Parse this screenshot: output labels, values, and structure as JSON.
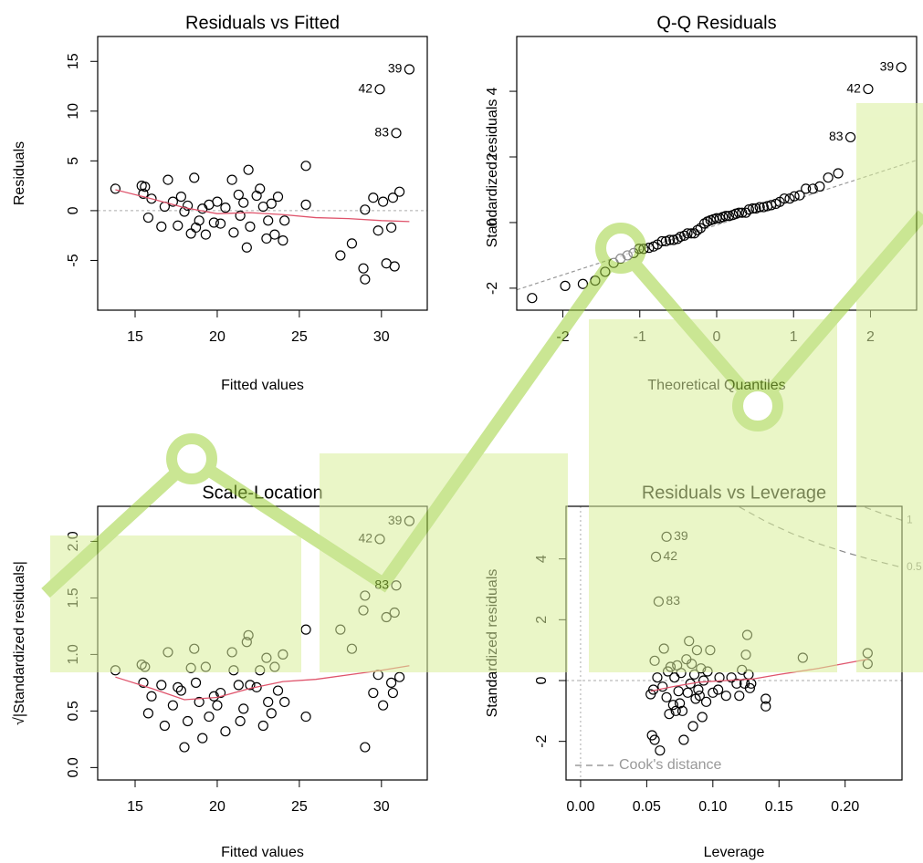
{
  "chart_data": [
    {
      "type": "scatter",
      "title": "Residuals vs Fitted",
      "x_label": "Fitted values",
      "y_label": "Residuals",
      "xlim": [
        12.72,
        32.79
      ],
      "ylim": [
        -10.0,
        17.5
      ],
      "xticks": [
        15,
        20,
        25,
        30
      ],
      "yticks": [
        -5,
        0,
        5,
        10,
        15
      ],
      "point_color": "#000000",
      "hline": 0,
      "x": [
        13.8,
        15.4,
        15.5,
        15.6,
        15.8,
        16.0,
        16.6,
        16.8,
        17.0,
        17.3,
        17.6,
        17.8,
        18.0,
        18.2,
        18.4,
        18.6,
        18.7,
        18.9,
        19.1,
        19.3,
        19.5,
        19.8,
        20.0,
        20.2,
        20.5,
        20.9,
        21.0,
        21.3,
        21.4,
        21.6,
        21.8,
        21.9,
        22.0,
        22.4,
        22.6,
        22.8,
        23.0,
        23.1,
        23.3,
        23.5,
        23.7,
        24.0,
        24.1,
        25.4,
        25.4,
        27.5,
        28.2,
        28.9,
        29.0,
        29.0,
        29.5,
        29.8,
        29.9,
        30.1,
        30.3,
        30.6,
        30.7,
        30.9,
        30.8,
        31.1,
        31.7
      ],
      "y": [
        2.2,
        2.5,
        1.7,
        2.4,
        -0.7,
        1.2,
        -1.6,
        0.4,
        3.1,
        0.9,
        -1.5,
        1.4,
        -0.1,
        0.5,
        -2.3,
        3.3,
        -1.7,
        -1.0,
        0.2,
        -2.4,
        0.6,
        -1.2,
        0.9,
        -1.3,
        0.3,
        3.1,
        -2.2,
        1.6,
        -0.5,
        0.8,
        -3.7,
        4.1,
        -1.6,
        1.5,
        2.2,
        0.4,
        -2.8,
        -1.0,
        0.7,
        -2.4,
        1.4,
        -3.0,
        -1.0,
        4.5,
        0.6,
        -4.5,
        -3.3,
        -5.8,
        -6.9,
        0.1,
        1.3,
        -2.0,
        12.2,
        0.9,
        -5.3,
        -1.7,
        1.3,
        7.8,
        -5.6,
        1.9,
        14.2
      ],
      "smooth": {
        "color": "#df536b",
        "x": [
          13.8,
          16,
          18,
          20,
          22,
          24,
          26,
          28,
          30,
          31.7
        ],
        "y": [
          2.1,
          1.2,
          0.3,
          -0.3,
          -0.2,
          -0.4,
          -0.7,
          -0.8,
          -1.0,
          -1.1
        ]
      },
      "annotations": [
        {
          "text": "39",
          "x": 31.7,
          "y": 14.2
        },
        {
          "text": "42",
          "x": 29.9,
          "y": 12.2
        },
        {
          "text": "83",
          "x": 30.9,
          "y": 7.8
        }
      ]
    },
    {
      "type": "scatter",
      "title": "Q-Q Residuals",
      "x_label": "Theoretical Quantiles",
      "y_label": "Standardized residuals",
      "xlim": [
        -2.6,
        2.6
      ],
      "ylim": [
        -2.67,
        5.67
      ],
      "xticks": [
        -2,
        -1,
        0,
        1,
        2
      ],
      "yticks": [
        -2,
        0,
        2,
        4
      ],
      "point_color": "#000000",
      "x": [
        -2.4,
        -1.97,
        -1.74,
        -1.58,
        -1.45,
        -1.34,
        -1.25,
        -1.16,
        -1.08,
        -1.01,
        -0.95,
        -0.88,
        -0.82,
        -0.77,
        -0.71,
        -0.66,
        -0.61,
        -0.56,
        -0.51,
        -0.47,
        -0.42,
        -0.38,
        -0.33,
        -0.29,
        -0.25,
        -0.21,
        -0.16,
        -0.12,
        -0.08,
        -0.04,
        0,
        0.04,
        0.08,
        0.12,
        0.16,
        0.21,
        0.25,
        0.29,
        0.33,
        0.38,
        0.42,
        0.47,
        0.51,
        0.56,
        0.61,
        0.66,
        0.71,
        0.77,
        0.82,
        0.88,
        0.95,
        1.01,
        1.08,
        1.16,
        1.25,
        1.34,
        1.45,
        1.58,
        1.74,
        1.97,
        2.4
      ],
      "y": [
        -2.3,
        -1.93,
        -1.87,
        -1.77,
        -1.5,
        -1.23,
        -1.1,
        -1.0,
        -0.93,
        -0.8,
        -0.8,
        -0.77,
        -0.73,
        -0.67,
        -0.57,
        -0.57,
        -0.53,
        -0.53,
        -0.5,
        -0.43,
        -0.4,
        -0.33,
        -0.33,
        -0.33,
        -0.23,
        -0.17,
        -0.03,
        0.03,
        0.07,
        0.1,
        0.13,
        0.13,
        0.17,
        0.2,
        0.2,
        0.23,
        0.27,
        0.3,
        0.3,
        0.3,
        0.4,
        0.43,
        0.43,
        0.47,
        0.47,
        0.5,
        0.53,
        0.57,
        0.63,
        0.73,
        0.73,
        0.8,
        0.83,
        1.03,
        1.03,
        1.1,
        1.37,
        1.5,
        2.6,
        4.07,
        4.73
      ],
      "refline": {
        "color": "#999999",
        "x": [
          -2.6,
          2.6
        ],
        "y": [
          -2.05,
          1.9
        ]
      },
      "annotations": [
        {
          "text": "39",
          "x": 2.4,
          "y": 4.73
        },
        {
          "text": "42",
          "x": 1.97,
          "y": 4.07
        },
        {
          "text": "83",
          "x": 1.74,
          "y": 2.6
        }
      ]
    },
    {
      "type": "scatter",
      "title": "Scale-Location",
      "x_label": "Fitted values",
      "y_label": "√|Standardized residuals|",
      "xlim": [
        12.72,
        32.79
      ],
      "ylim": [
        -0.11,
        2.31
      ],
      "xticks": [
        15,
        20,
        25,
        30
      ],
      "yticks": [
        {
          "value": 0,
          "label": "0.0"
        },
        0.5,
        {
          "value": 1,
          "label": "1.0"
        },
        1.5,
        {
          "value": 2,
          "label": "2.0"
        }
      ],
      "point_color": "#000000",
      "x": [
        13.8,
        15.4,
        15.5,
        15.6,
        15.8,
        16.0,
        16.6,
        16.8,
        17.0,
        17.3,
        17.6,
        17.8,
        18.0,
        18.2,
        18.4,
        18.6,
        18.7,
        18.9,
        19.1,
        19.3,
        19.5,
        19.8,
        20.0,
        20.2,
        20.5,
        20.9,
        21.0,
        21.3,
        21.4,
        21.6,
        21.8,
        21.9,
        22.0,
        22.4,
        22.6,
        22.8,
        23.0,
        23.1,
        23.3,
        23.5,
        23.7,
        24.0,
        24.1,
        25.4,
        25.4,
        27.5,
        28.2,
        28.9,
        29.0,
        29.0,
        29.5,
        29.8,
        29.9,
        30.1,
        30.3,
        30.6,
        30.7,
        30.9,
        30.8,
        31.1,
        31.7
      ],
      "y": [
        0.86,
        0.91,
        0.75,
        0.89,
        0.48,
        0.63,
        0.73,
        0.37,
        1.02,
        0.55,
        0.71,
        0.68,
        0.18,
        0.41,
        0.88,
        1.05,
        0.75,
        0.58,
        0.26,
        0.89,
        0.45,
        0.63,
        0.55,
        0.66,
        0.32,
        1.02,
        0.86,
        0.73,
        0.41,
        0.52,
        1.11,
        1.17,
        0.73,
        0.71,
        0.86,
        0.37,
        0.97,
        0.58,
        0.48,
        0.89,
        0.68,
        1.0,
        0.58,
        1.22,
        0.45,
        1.22,
        1.05,
        1.39,
        1.52,
        0.18,
        0.66,
        0.82,
        2.02,
        0.55,
        1.33,
        0.75,
        0.66,
        1.61,
        1.37,
        0.8,
        2.18
      ],
      "smooth": {
        "color": "#df536b",
        "x": [
          13.8,
          16,
          18,
          20,
          22,
          24,
          26,
          28,
          30,
          31.7
        ],
        "y": [
          0.8,
          0.7,
          0.6,
          0.62,
          0.7,
          0.76,
          0.78,
          0.82,
          0.86,
          0.9
        ]
      },
      "annotations": [
        {
          "text": "39",
          "x": 31.7,
          "y": 2.18
        },
        {
          "text": "42",
          "x": 29.9,
          "y": 2.02
        },
        {
          "text": "83",
          "x": 30.9,
          "y": 1.61
        }
      ]
    },
    {
      "type": "scatter",
      "title": "Residuals vs Leverage",
      "x_label": "Leverage",
      "y_label": "Standardized residuals",
      "xlim": [
        -0.011,
        0.243
      ],
      "ylim": [
        -3.27,
        5.73
      ],
      "xticks": [
        {
          "value": 0,
          "label": "0.00"
        },
        {
          "value": 0.05,
          "label": "0.05"
        },
        {
          "value": 0.1,
          "label": "0.10"
        },
        {
          "value": 0.15,
          "label": "0.15"
        },
        {
          "value": 0.2,
          "label": "0.20"
        }
      ],
      "yticks": [
        -2,
        0,
        2,
        4
      ],
      "point_color": "#000000",
      "hline": 0,
      "vline": 0,
      "x": [
        0.053,
        0.055,
        0.056,
        0.054,
        0.056,
        0.06,
        0.058,
        0.062,
        0.063,
        0.065,
        0.066,
        0.067,
        0.068,
        0.07,
        0.071,
        0.072,
        0.073,
        0.074,
        0.075,
        0.076,
        0.077,
        0.078,
        0.08,
        0.081,
        0.082,
        0.083,
        0.084,
        0.085,
        0.086,
        0.087,
        0.088,
        0.089,
        0.09,
        0.091,
        0.092,
        0.093,
        0.095,
        0.096,
        0.098,
        0.1,
        0.104,
        0.105,
        0.11,
        0.114,
        0.118,
        0.12,
        0.122,
        0.124,
        0.125,
        0.126,
        0.127,
        0.128,
        0.129,
        0.14,
        0.14,
        0.168,
        0.217,
        0.217,
        0.057,
        0.059,
        0.065
      ],
      "y": [
        -0.45,
        -0.3,
        0.65,
        -1.8,
        -1.95,
        -2.3,
        0.1,
        -0.2,
        1.05,
        -0.55,
        0.3,
        -1.1,
        0.45,
        -0.8,
        0.1,
        -1.0,
        0.5,
        -0.35,
        -0.75,
        0.25,
        -1.0,
        -1.95,
        0.7,
        -0.4,
        1.3,
        -0.1,
        0.55,
        -1.5,
        0.2,
        -0.6,
        1.0,
        -0.3,
        -0.5,
        0.4,
        -1.2,
        0.0,
        -0.7,
        0.3,
        1.0,
        -0.4,
        -0.3,
        0.1,
        -0.5,
        0.1,
        -0.1,
        -0.5,
        0.35,
        -0.1,
        0.85,
        1.5,
        0.2,
        -0.25,
        -0.1,
        -0.6,
        -0.85,
        0.75,
        0.9,
        0.55,
        4.07,
        2.6,
        4.73
      ],
      "smooth": {
        "color": "#df536b",
        "x": [
          0.053,
          0.07,
          0.09,
          0.11,
          0.13,
          0.15,
          0.18,
          0.217
        ],
        "y": [
          -0.35,
          -0.2,
          -0.05,
          0.0,
          0.05,
          0.2,
          0.4,
          0.7
        ]
      },
      "contours": [
        {
          "level": 0.5,
          "x": [
            0.12,
            0.14,
            0.16,
            0.18,
            0.2,
            0.22,
            0.243
          ],
          "y": [
            5.71,
            5.23,
            4.83,
            4.5,
            4.22,
            3.97,
            3.72
          ]
        },
        {
          "level": 1,
          "x": [
            0.215,
            0.23,
            0.243
          ],
          "y": [
            5.7,
            5.46,
            5.27
          ]
        }
      ],
      "legend": "Cook's distance",
      "annotations": [
        {
          "text": "39",
          "x": 0.065,
          "y": 4.73
        },
        {
          "text": "42",
          "x": 0.057,
          "y": 4.07
        },
        {
          "text": "83",
          "x": 0.059,
          "y": 2.6
        }
      ]
    }
  ]
}
